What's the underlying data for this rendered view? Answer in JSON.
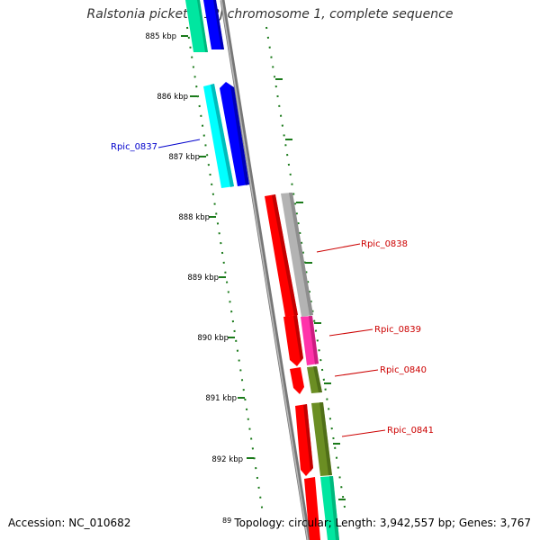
{
  "title": "Ralstonia pickettii 12J chromosome 1, complete sequence",
  "footer": {
    "accession": "Accession: NC_010682",
    "summary": "Topology: circular; Length: 3,942,557 bp; Genes: 3,767",
    "cutoff_tick": "89"
  },
  "ticks": [
    "885 kbp",
    "886 kbp",
    "887 kbp",
    "888 kbp",
    "889 kbp",
    "890 kbp",
    "891 kbp",
    "892 kbp"
  ],
  "gene_labels": [
    {
      "text": "Rpic_0837",
      "color": "#0000cc"
    },
    {
      "text": "Rpic_0838",
      "color": "#cc0000"
    },
    {
      "text": "Rpic_0839",
      "color": "#cc0000"
    },
    {
      "text": "Rpic_0840",
      "color": "#cc0000"
    },
    {
      "text": "Rpic_0841",
      "color": "#cc0000"
    }
  ],
  "colors": {
    "backbone": "#888888",
    "tick": "#1a7a1a",
    "forward_cds": "#0000ff",
    "reverse_cds": "#ff0000",
    "cyan": "#00ffff",
    "teal": "#00e6a0",
    "grey": "#b3b3b3",
    "pink": "#ff33aa",
    "olive": "#6b8e23"
  }
}
